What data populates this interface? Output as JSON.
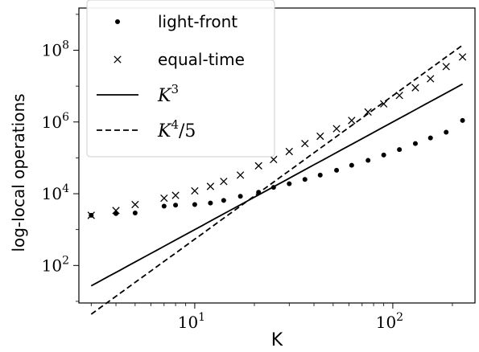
{
  "chart_data": {
    "type": "scatter",
    "xlabel": "K",
    "ylabel": "log-local operations",
    "xscale": "log",
    "yscale": "log",
    "xlim": [
      2.6,
      260
    ],
    "ylim": [
      9,
      1500000000
    ],
    "x_ticks": [
      {
        "value": 10,
        "base": "10",
        "exp": "1"
      },
      {
        "value": 100,
        "base": "10",
        "exp": "2"
      }
    ],
    "y_ticks": [
      {
        "value": 100,
        "base": "10",
        "exp": "2"
      },
      {
        "value": 10000,
        "base": "10",
        "exp": "4"
      },
      {
        "value": 1000000,
        "base": "10",
        "exp": "6"
      },
      {
        "value": 100000000,
        "base": "10",
        "exp": "8"
      }
    ],
    "legend_position": "upper-left",
    "series": [
      {
        "name": "light-front",
        "marker": "dot",
        "color": "#000000",
        "points": [
          [
            3,
            2500
          ],
          [
            4,
            2800
          ],
          [
            5,
            2900
          ],
          [
            7,
            4500
          ],
          [
            8,
            4800
          ],
          [
            10,
            5000
          ],
          [
            12,
            5500
          ],
          [
            14,
            6500
          ],
          [
            17,
            8500
          ],
          [
            21,
            11000
          ],
          [
            25,
            15000
          ],
          [
            30,
            19000
          ],
          [
            36,
            25000
          ],
          [
            43,
            33000
          ],
          [
            52,
            45000
          ],
          [
            62,
            62000
          ],
          [
            75,
            85000
          ],
          [
            90,
            120000
          ],
          [
            108,
            170000
          ],
          [
            130,
            250000
          ],
          [
            155,
            360000
          ],
          [
            186,
            520000
          ],
          [
            225,
            1100000
          ]
        ]
      },
      {
        "name": "equal-time",
        "marker": "x",
        "color": "#000000",
        "points": [
          [
            3,
            2500
          ],
          [
            4,
            3400
          ],
          [
            5,
            5000
          ],
          [
            7,
            7500
          ],
          [
            8,
            9000
          ],
          [
            10,
            12000
          ],
          [
            12,
            16000
          ],
          [
            14,
            22000
          ],
          [
            17,
            33000
          ],
          [
            21,
            60000
          ],
          [
            25,
            90000
          ],
          [
            30,
            150000
          ],
          [
            36,
            250000
          ],
          [
            43,
            400000
          ],
          [
            52,
            650000
          ],
          [
            62,
            1100000
          ],
          [
            75,
            1900000
          ],
          [
            90,
            3200000
          ],
          [
            108,
            5500000
          ],
          [
            130,
            9000000
          ],
          [
            155,
            16000000
          ],
          [
            186,
            35000000
          ],
          [
            225,
            65000000
          ]
        ]
      },
      {
        "name": "K^3",
        "label_base": "K",
        "label_exp": "3",
        "style": "solid",
        "color": "#000000",
        "x_range": [
          3,
          225
        ]
      },
      {
        "name": "K^4/5",
        "label_base": "K",
        "label_exp": "4",
        "label_suffix": "/5",
        "style": "dashed",
        "color": "#000000",
        "x_range": [
          3,
          225
        ]
      }
    ]
  }
}
